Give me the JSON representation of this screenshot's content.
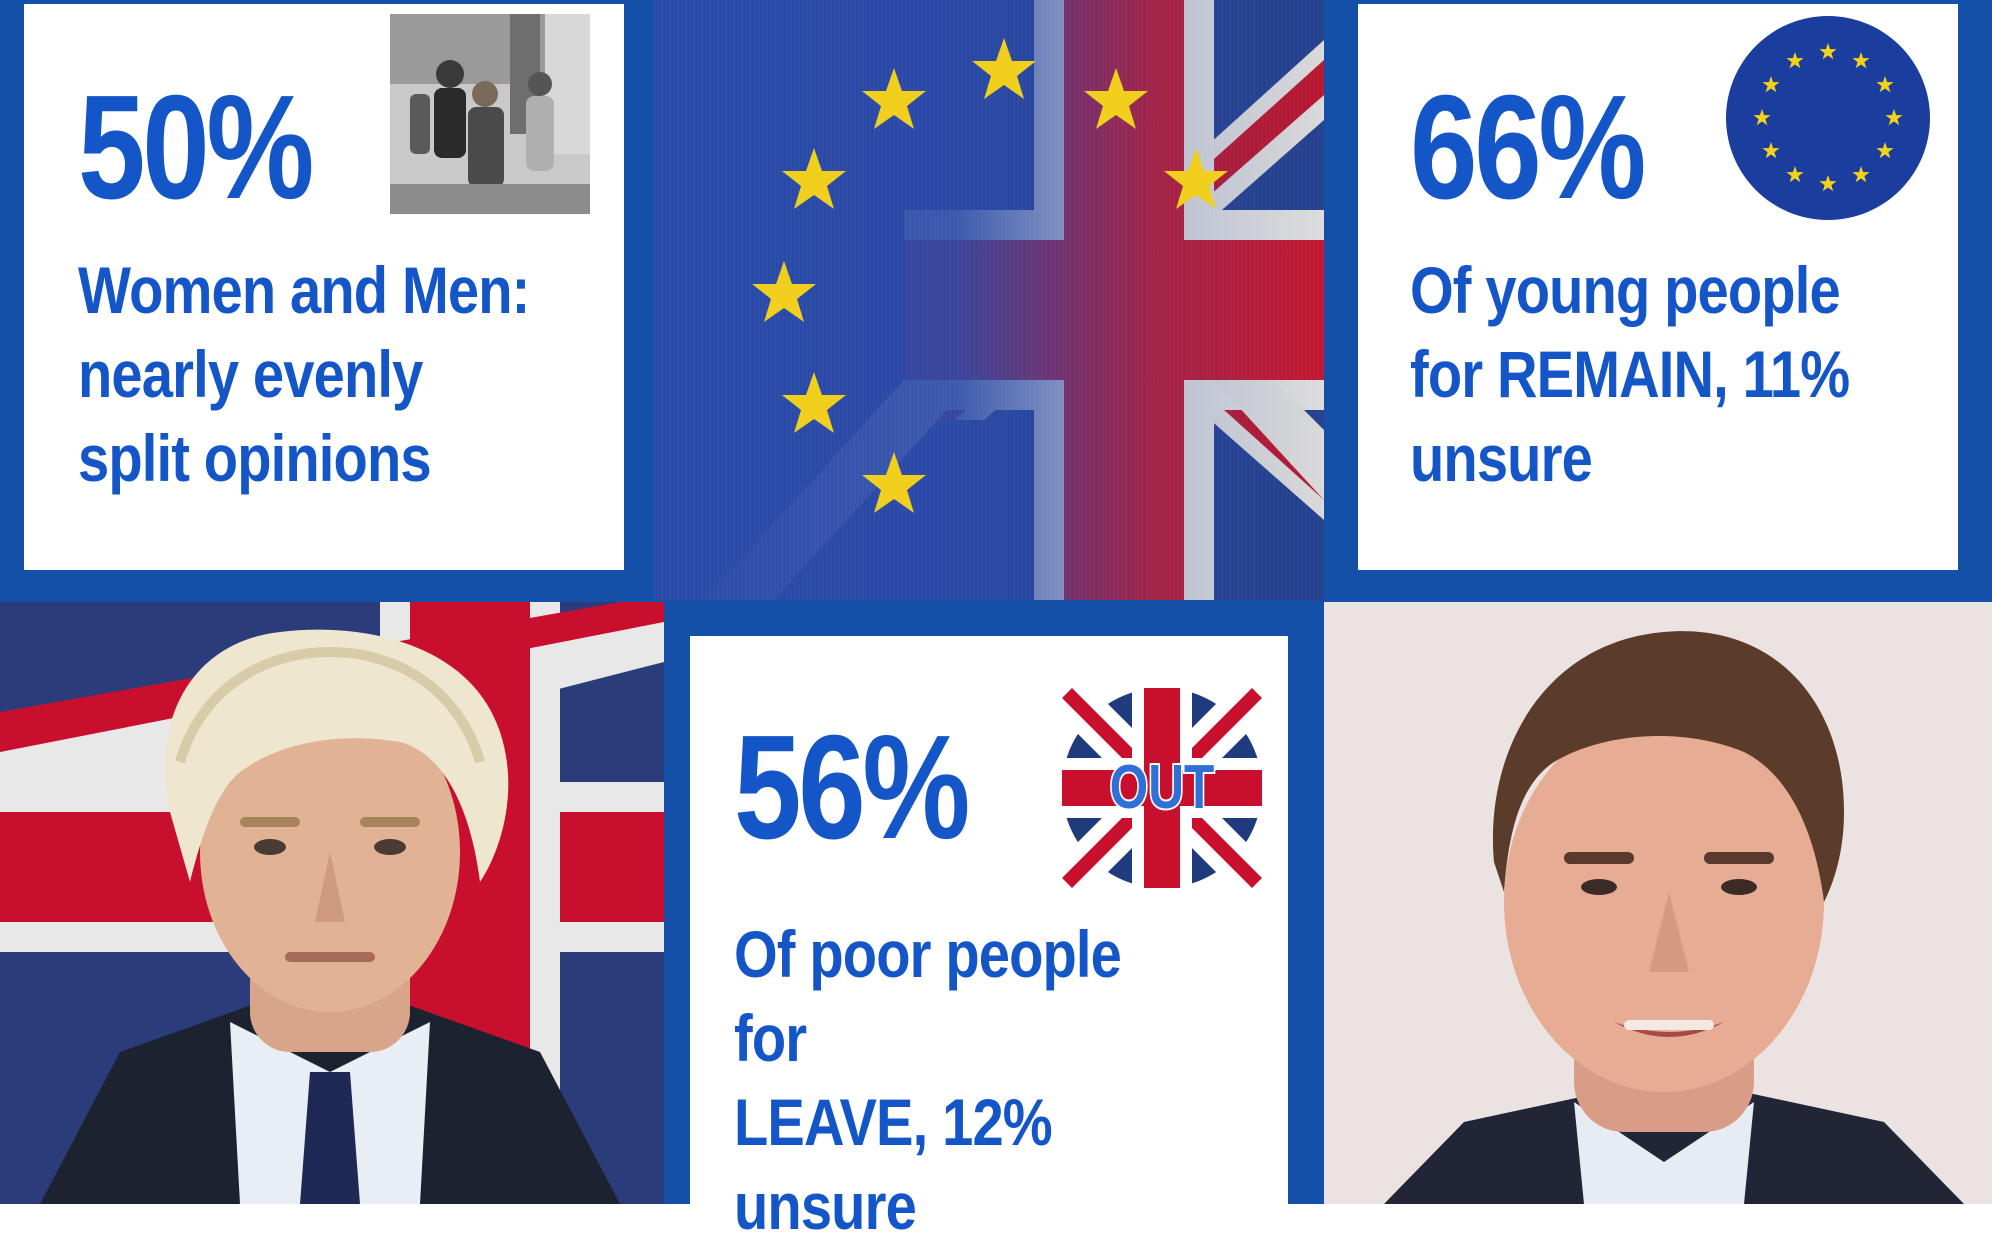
{
  "tiles": {
    "gender": {
      "stat": "50%",
      "caption": "Women and Men:\nnearly evenly\nsplit opinions",
      "icon": "crowd-photo-icon"
    },
    "young": {
      "stat": "66%",
      "caption": "Of young people\nfor REMAIN, 11%\nunsure",
      "icon": "eu-flag-icon"
    },
    "poor": {
      "stat": "56%",
      "caption": "Of poor people for\nLEAVE, 12% unsure",
      "icon": "union-jack-out-badge-icon",
      "badge_text": "OUT"
    }
  },
  "images": {
    "center_flag": "eu-and-union-jack-flag-image",
    "left_photo": "blond-man-portrait-photo",
    "right_photo": "dark-haired-man-portrait-photo"
  },
  "colors": {
    "frame_blue": "#1550a8",
    "text_blue": "#1456c8",
    "eu_blue": "#1a3d9e",
    "eu_gold": "#f2d21a",
    "uk_red": "#c8102e",
    "uk_navy": "#1f3a7d"
  }
}
